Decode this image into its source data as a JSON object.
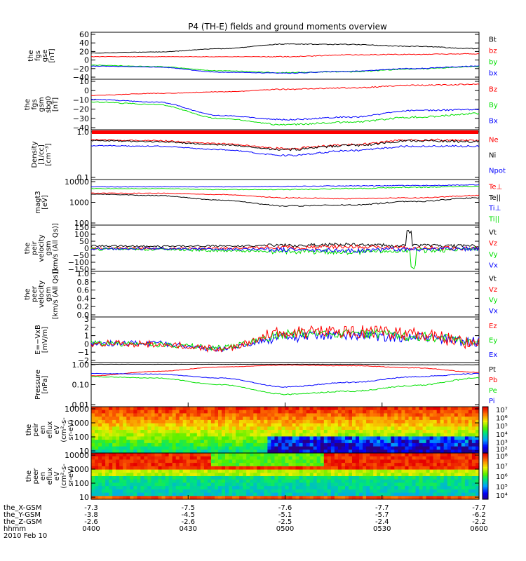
{
  "title": "P4 (TH-E) fields and ground moments overview",
  "time_ticks": [
    "0400",
    "0430",
    "0500",
    "0530",
    "0600"
  ],
  "footer": {
    "rows": [
      {
        "label": "the_X-GSM",
        "values": [
          "-7.3",
          "-7.5",
          "-7.6",
          "-7.7",
          "-7.7"
        ]
      },
      {
        "label": "the_Y-GSM",
        "values": [
          "-3.8",
          "-4.5",
          "-5.1",
          "-5.7",
          "-6.2"
        ]
      },
      {
        "label": "the_Z-GSM",
        "values": [
          "-2.6",
          "-2.6",
          "-2.5",
          "-2.4",
          "-2.2"
        ]
      },
      {
        "label": "hhmm",
        "values": [
          "0400",
          "0430",
          "0500",
          "0530",
          "0600"
        ]
      }
    ],
    "date": "2010 Feb 10"
  },
  "colors": {
    "black": "#000000",
    "red": "#ff0000",
    "green": "#00e000",
    "blue": "#0000ff"
  },
  "panels": [
    {
      "key": "fgs_gse",
      "ylabel": [
        "the",
        "fgs",
        "gse",
        "[nT]"
      ],
      "ticks": [
        "60",
        "40",
        "20",
        "0",
        "−20",
        "−40"
      ],
      "legend": [
        {
          "t": "Bt",
          "c": "black"
        },
        {
          "t": "bz",
          "c": "red"
        },
        {
          "t": "by",
          "c": "green"
        },
        {
          "t": "bx",
          "c": "blue"
        }
      ]
    },
    {
      "key": "fgs_gsm",
      "ylabel": [
        "the",
        "fgs",
        "gsm",
        "sbg0",
        "[nT]"
      ],
      "ticks": [
        "10",
        "0",
        "−10",
        "−20",
        "−30",
        "−40"
      ],
      "legend": [
        {
          "t": "Bz",
          "c": "red"
        },
        {
          "t": "By",
          "c": "green"
        },
        {
          "t": "Bx",
          "c": "blue"
        }
      ]
    },
    {
      "key": "density",
      "ylabel": [
        "Density",
        "[1/cc]",
        "[cm⁻³]"
      ],
      "ticks": [
        "1.0",
        "0.1"
      ],
      "legend": [
        {
          "t": "Ne",
          "c": "red"
        },
        {
          "t": "Ni",
          "c": "black"
        },
        {
          "t": "Npot",
          "c": "blue"
        }
      ]
    },
    {
      "key": "temp",
      "ylabel": [
        "magt3",
        "[eV]"
      ],
      "ticks": [
        "10000",
        "1000",
        "100"
      ],
      "legend": [
        {
          "t": "Te⊥",
          "c": "red"
        },
        {
          "t": "Te||",
          "c": "black"
        },
        {
          "t": "Ti⊥",
          "c": "blue"
        },
        {
          "t": "Ti||",
          "c": "green"
        }
      ]
    },
    {
      "key": "peir_vel",
      "ylabel": [
        "the",
        "peir",
        "velocity",
        "gsm",
        "[km/s (All Qs)]"
      ],
      "ticks": [
        "150",
        "100",
        "50",
        "0",
        "−50",
        "−100",
        "−150"
      ],
      "legend": [
        {
          "t": "Vt",
          "c": "black"
        },
        {
          "t": "Vz",
          "c": "red"
        },
        {
          "t": "Vy",
          "c": "green"
        },
        {
          "t": "Vx",
          "c": "blue"
        }
      ]
    },
    {
      "key": "peer_vel",
      "ylabel": [
        "the",
        "peer",
        "velocity",
        "gsm",
        "[km/s (All Qs)]"
      ],
      "ticks": [
        "1.0",
        "0.8",
        "0.6",
        "0.4",
        "0.2",
        "0.0"
      ],
      "legend": [
        {
          "t": "Vt",
          "c": "black"
        },
        {
          "t": "Vz",
          "c": "red"
        },
        {
          "t": "Vy",
          "c": "green"
        },
        {
          "t": "Vx",
          "c": "blue"
        }
      ]
    },
    {
      "key": "efield",
      "ylabel": [
        "E=−VxB",
        "[mV/m]"
      ],
      "ticks": [
        "3",
        "2",
        "1",
        "0",
        "−1",
        "−2"
      ],
      "legend": [
        {
          "t": "Ez",
          "c": "red"
        },
        {
          "t": "Ey",
          "c": "green"
        },
        {
          "t": "Ex",
          "c": "blue"
        }
      ]
    },
    {
      "key": "pressure",
      "ylabel": [
        "Pressure",
        "[nPa]"
      ],
      "ticks": [
        "1.00",
        "0.10",
        "0.01"
      ],
      "legend": [
        {
          "t": "Pt",
          "c": "black"
        },
        {
          "t": "Pb",
          "c": "red"
        },
        {
          "t": "Pe",
          "c": "green"
        },
        {
          "t": "Pi",
          "c": "blue"
        }
      ]
    },
    {
      "key": "peir_eflux",
      "ylabel": [
        "the",
        "peir",
        "en",
        "eflux",
        "eV",
        "(cm²-s-",
        "sr-eV)"
      ],
      "ticks": [
        "10000",
        "1000",
        "100",
        "10"
      ],
      "cbar": [
        "10⁷",
        "10⁶",
        "10⁵",
        "10⁴",
        "10³",
        "10²"
      ]
    },
    {
      "key": "peer_eflux",
      "ylabel": [
        "the",
        "peer",
        "en",
        "eflux",
        "eV",
        "(cm²-s-",
        "sr-eV)"
      ],
      "ticks": [
        "10000",
        "1000",
        "100",
        "10"
      ],
      "cbar": [
        "10⁸",
        "10⁷",
        "10⁶",
        "10⁵",
        "10⁴"
      ]
    }
  ],
  "chart_data": [
    {
      "type": "line",
      "title": "P4 (TH-E) fields and ground moments overview",
      "ylabel": "the fgs gse [nT]",
      "ylim": [
        -50,
        65
      ],
      "x": [
        "0400",
        "0430",
        "0500",
        "0530",
        "0600"
      ],
      "series": [
        {
          "name": "Bt",
          "values": [
            22,
            30,
            40,
            36,
            28
          ]
        },
        {
          "name": "bz",
          "values": [
            15,
            12,
            12,
            16,
            18
          ]
        },
        {
          "name": "by",
          "values": [
            -10,
            -20,
            -33,
            -28,
            -15
          ]
        },
        {
          "name": "bx",
          "values": [
            -12,
            -18,
            -35,
            -30,
            -20
          ]
        }
      ]
    },
    {
      "type": "line",
      "ylabel": "the fgs gsm sbg0 [nT]",
      "ylim": [
        -45,
        12
      ],
      "x": [
        "0400",
        "0430",
        "0500",
        "0530",
        "0600"
      ],
      "series": [
        {
          "name": "Bz",
          "values": [
            -5,
            -2,
            4,
            7,
            6
          ]
        },
        {
          "name": "By",
          "values": [
            -10,
            -20,
            -35,
            -30,
            -22
          ]
        },
        {
          "name": "Bx",
          "values": [
            -7,
            -15,
            -29,
            -26,
            -12
          ]
        }
      ]
    },
    {
      "type": "line",
      "ylabel": "Density [1/cc]",
      "ylim": [
        0.1,
        1.2
      ],
      "x": [
        "0400",
        "0430",
        "0500",
        "0530",
        "0600"
      ],
      "series": [
        {
          "name": "Ne",
          "values": [
            0.62,
            0.58,
            0.42,
            0.55,
            0.6
          ]
        },
        {
          "name": "Ni",
          "values": [
            0.55,
            0.52,
            0.38,
            0.5,
            0.55
          ]
        },
        {
          "name": "Npot",
          "values": [
            0.4,
            0.38,
            0.27,
            0.36,
            0.4
          ]
        }
      ]
    },
    {
      "type": "line",
      "ylabel": "magt3 [eV]",
      "ylim": [
        100,
        10000
      ],
      "x": [
        "0400",
        "0430",
        "0500",
        "0530",
        "0600"
      ],
      "series": [
        {
          "name": "Te⊥",
          "values": [
            3500,
            2500,
            1200,
            1300,
            2000
          ]
        },
        {
          "name": "Te||",
          "values": [
            3000,
            1800,
            800,
            900,
            1500
          ]
        },
        {
          "name": "Ti⊥",
          "values": [
            6000,
            6200,
            6500,
            6700,
            7000
          ]
        },
        {
          "name": "Ti||",
          "values": [
            5500,
            5500,
            5000,
            5200,
            5500
          ]
        }
      ]
    },
    {
      "type": "line",
      "ylabel": "the peir velocity gsm [km/s (All Qs)]",
      "ylim": [
        -160,
        160
      ],
      "x": [
        "0400",
        "0430",
        "0500",
        "0530",
        "0600"
      ],
      "series": [
        {
          "name": "Vt",
          "values": [
            20,
            20,
            30,
            40,
            30
          ]
        },
        {
          "name": "Vz",
          "values": [
            5,
            5,
            10,
            15,
            10
          ]
        },
        {
          "name": "Vy",
          "values": [
            -5,
            -5,
            -20,
            -30,
            -10
          ]
        },
        {
          "name": "Vx",
          "values": [
            0,
            0,
            -10,
            -15,
            0
          ]
        }
      ]
    },
    {
      "type": "line",
      "ylabel": "the peer velocity gsm [km/s (All Qs)]",
      "ylim": [
        0,
        1
      ],
      "x": [
        "0400",
        "0430",
        "0500",
        "0530",
        "0600"
      ],
      "series": []
    },
    {
      "type": "line",
      "ylabel": "E=−VxB [mV/m]",
      "ylim": [
        -2,
        3
      ],
      "x": [
        "0400",
        "0430",
        "0500",
        "0530",
        "0600"
      ],
      "series": [
        {
          "name": "Ez",
          "values": [
            0,
            -0.2,
            1,
            1.5,
            0.5
          ]
        },
        {
          "name": "Ey",
          "values": [
            0,
            -0.1,
            0.6,
            0.8,
            0.3
          ]
        },
        {
          "name": "Ex",
          "values": [
            0,
            0,
            -0.2,
            -0.3,
            0
          ]
        }
      ]
    },
    {
      "type": "line",
      "ylabel": "Pressure [nPa]",
      "ylim": [
        0.01,
        1.2
      ],
      "x": [
        "0400",
        "0430",
        "0500",
        "0530",
        "0600"
      ],
      "series": [
        {
          "name": "Pt",
          "values": [
            0.9,
            0.92,
            0.95,
            0.93,
            0.9
          ]
        },
        {
          "name": "Pb",
          "values": [
            0.45,
            0.7,
            0.85,
            0.75,
            0.55
          ]
        },
        {
          "name": "Pe",
          "values": [
            0.3,
            0.15,
            0.04,
            0.08,
            0.2
          ]
        },
        {
          "name": "Pi",
          "values": [
            0.45,
            0.35,
            0.15,
            0.25,
            0.4
          ]
        }
      ]
    },
    {
      "type": "heatmap",
      "ylabel": "the peir en eflux eV (cm²-s-sr-eV)",
      "ylim": [
        5,
        20000
      ],
      "colorbar": [
        100,
        10000000
      ]
    },
    {
      "type": "heatmap",
      "ylabel": "the peer en eflux eV (cm²-s-sr-eV)",
      "ylim": [
        5,
        20000
      ],
      "colorbar": [
        10000,
        100000000
      ]
    }
  ]
}
